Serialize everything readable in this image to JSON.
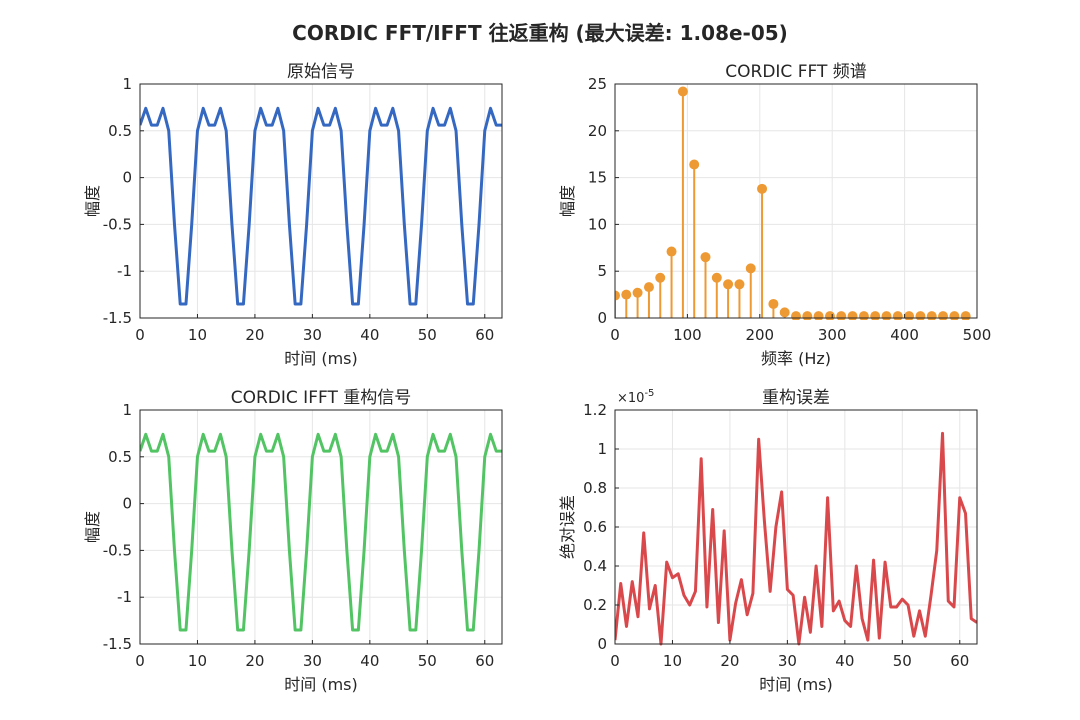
{
  "figure": {
    "title": "CORDIC FFT/IFFT 往返重构 (最大误差: 1.08e-05)"
  },
  "colors": {
    "signal": "#3568c1",
    "spectrum": "#ee9a34",
    "reconstructed": "#52c464",
    "error": "#d9494c",
    "axis": "#262626",
    "grid": "#e6e6e6"
  },
  "chart_data": [
    {
      "id": "orig",
      "type": "line",
      "title": "原始信号",
      "xlabel": "时间 (ms)",
      "ylabel": "幅度",
      "xlim": [
        0,
        63
      ],
      "ylim": [
        -1.5,
        1
      ],
      "xticks": [
        0,
        10,
        20,
        30,
        40,
        50,
        60
      ],
      "yticks": [
        1,
        0.5,
        0,
        -0.5,
        -1,
        -1.5
      ],
      "xtick_labels": [
        "0",
        "10",
        "20",
        "30",
        "40",
        "50",
        "60"
      ],
      "ytick_labels": [
        "1",
        "0.5",
        "0",
        "-0.5",
        "-1",
        "-1.5"
      ],
      "grid": true,
      "color": "signal",
      "x": [
        0,
        1,
        2,
        3,
        4,
        5,
        6,
        7,
        8,
        9,
        10,
        11,
        12,
        13,
        14,
        15,
        16,
        17,
        18,
        19,
        20,
        21,
        22,
        23,
        24,
        25,
        26,
        27,
        28,
        29,
        30,
        31,
        32,
        33,
        34,
        35,
        36,
        37,
        38,
        39,
        40,
        41,
        42,
        43,
        44,
        45,
        46,
        47,
        48,
        49,
        50,
        51,
        52,
        53,
        54,
        55,
        56,
        57,
        58,
        59,
        60,
        61,
        62,
        63
      ],
      "y": [
        0.56,
        0.74,
        0.56,
        0.56,
        0.74,
        0.5,
        -0.5,
        -1.35,
        -1.35,
        -0.5,
        0.5,
        0.74,
        0.56,
        0.56,
        0.74,
        0.5,
        -0.5,
        -1.35,
        -1.35,
        -0.5,
        0.5,
        0.74,
        0.56,
        0.56,
        0.74,
        0.5,
        -0.5,
        -1.35,
        -1.35,
        -0.5,
        0.5,
        0.74,
        0.56,
        0.56,
        0.74,
        0.5,
        -0.5,
        -1.35,
        -1.35,
        -0.5,
        0.5,
        0.74,
        0.56,
        0.56,
        0.74,
        0.5,
        -0.5,
        -1.35,
        -1.35,
        -0.5,
        0.5,
        0.74,
        0.56,
        0.56,
        0.74,
        0.5,
        -0.5,
        -1.35,
        -1.35,
        -0.5,
        0.5,
        0.74,
        0.56,
        0.56
      ]
    },
    {
      "id": "fft",
      "type": "stem",
      "title": "CORDIC FFT 频谱",
      "xlabel": "频率 (Hz)",
      "ylabel": "幅度",
      "xlim": [
        0,
        500
      ],
      "ylim": [
        0,
        25
      ],
      "xticks": [
        0,
        100,
        200,
        300,
        400,
        500
      ],
      "yticks": [
        25,
        20,
        15,
        10,
        5,
        0
      ],
      "xtick_labels": [
        "0",
        "100",
        "200",
        "300",
        "400",
        "500"
      ],
      "ytick_labels": [
        "25",
        "20",
        "15",
        "10",
        "5",
        "0"
      ],
      "grid": true,
      "color": "spectrum",
      "x": [
        0,
        15.6,
        31.2,
        46.9,
        62.5,
        78.1,
        93.8,
        109.4,
        125,
        140.6,
        156.2,
        171.9,
        187.5,
        203.1,
        218.8,
        234.4,
        250,
        265.6,
        281.2,
        296.9,
        312.5,
        328.1,
        343.8,
        359.4,
        375,
        390.6,
        406.2,
        421.9,
        437.5,
        453.1,
        468.8,
        484.4
      ],
      "y": [
        2.4,
        2.5,
        2.7,
        3.3,
        4.3,
        7.1,
        24.2,
        16.4,
        6.5,
        4.3,
        3.6,
        3.6,
        5.3,
        13.8,
        1.5,
        0.6,
        0.2,
        0.2,
        0.2,
        0.2,
        0.2,
        0.2,
        0.2,
        0.2,
        0.2,
        0.2,
        0.2,
        0.2,
        0.2,
        0.2,
        0.2,
        0.2
      ]
    },
    {
      "id": "ifft",
      "type": "line",
      "title": "CORDIC IFFT 重构信号",
      "xlabel": "时间 (ms)",
      "ylabel": "幅度",
      "xlim": [
        0,
        63
      ],
      "ylim": [
        -1.5,
        1
      ],
      "xticks": [
        0,
        10,
        20,
        30,
        40,
        50,
        60
      ],
      "yticks": [
        1,
        0.5,
        0,
        -0.5,
        -1,
        -1.5
      ],
      "xtick_labels": [
        "0",
        "10",
        "20",
        "30",
        "40",
        "50",
        "60"
      ],
      "ytick_labels": [
        "1",
        "0.5",
        "0",
        "-0.5",
        "-1",
        "-1.5"
      ],
      "grid": true,
      "color": "reconstructed",
      "x": [
        0,
        1,
        2,
        3,
        4,
        5,
        6,
        7,
        8,
        9,
        10,
        11,
        12,
        13,
        14,
        15,
        16,
        17,
        18,
        19,
        20,
        21,
        22,
        23,
        24,
        25,
        26,
        27,
        28,
        29,
        30,
        31,
        32,
        33,
        34,
        35,
        36,
        37,
        38,
        39,
        40,
        41,
        42,
        43,
        44,
        45,
        46,
        47,
        48,
        49,
        50,
        51,
        52,
        53,
        54,
        55,
        56,
        57,
        58,
        59,
        60,
        61,
        62,
        63
      ],
      "y": [
        0.56,
        0.74,
        0.56,
        0.56,
        0.74,
        0.5,
        -0.5,
        -1.35,
        -1.35,
        -0.5,
        0.5,
        0.74,
        0.56,
        0.56,
        0.74,
        0.5,
        -0.5,
        -1.35,
        -1.35,
        -0.5,
        0.5,
        0.74,
        0.56,
        0.56,
        0.74,
        0.5,
        -0.5,
        -1.35,
        -1.35,
        -0.5,
        0.5,
        0.74,
        0.56,
        0.56,
        0.74,
        0.5,
        -0.5,
        -1.35,
        -1.35,
        -0.5,
        0.5,
        0.74,
        0.56,
        0.56,
        0.74,
        0.5,
        -0.5,
        -1.35,
        -1.35,
        -0.5,
        0.5,
        0.74,
        0.56,
        0.56,
        0.74,
        0.5,
        -0.5,
        -1.35,
        -1.35,
        -0.5,
        0.5,
        0.74,
        0.56,
        0.56
      ]
    },
    {
      "id": "err",
      "type": "line",
      "title": "重构误差",
      "xlabel": "时间 (ms)",
      "ylabel": "绝对误差",
      "exponent_label": "×10",
      "exponent_value": "-5",
      "xlim": [
        0,
        63
      ],
      "ylim": [
        0,
        1.2
      ],
      "xticks": [
        0,
        10,
        20,
        30,
        40,
        50,
        60
      ],
      "yticks": [
        1.2,
        1,
        0.8,
        0.6,
        0.4,
        0.2,
        0
      ],
      "xtick_labels": [
        "0",
        "10",
        "20",
        "30",
        "40",
        "50",
        "60"
      ],
      "ytick_labels": [
        "1.2",
        "1",
        "0.8",
        "0.6",
        "0.4",
        "0.2",
        "0"
      ],
      "grid": true,
      "color": "error",
      "x": [
        0,
        1,
        2,
        3,
        4,
        5,
        6,
        7,
        8,
        9,
        10,
        11,
        12,
        13,
        14,
        15,
        16,
        17,
        18,
        19,
        20,
        21,
        22,
        23,
        24,
        25,
        26,
        27,
        28,
        29,
        30,
        31,
        32,
        33,
        34,
        35,
        36,
        37,
        38,
        39,
        40,
        41,
        42,
        43,
        44,
        45,
        46,
        47,
        48,
        49,
        50,
        51,
        52,
        53,
        54,
        55,
        56,
        57,
        58,
        59,
        60,
        61,
        62,
        63
      ],
      "y": [
        0.02,
        0.31,
        0.09,
        0.32,
        0.14,
        0.57,
        0.18,
        0.3,
        0.0,
        0.42,
        0.34,
        0.36,
        0.25,
        0.2,
        0.27,
        0.95,
        0.19,
        0.69,
        0.11,
        0.58,
        0.02,
        0.21,
        0.33,
        0.15,
        0.26,
        1.05,
        0.63,
        0.27,
        0.6,
        0.78,
        0.28,
        0.25,
        0.0,
        0.24,
        0.06,
        0.4,
        0.09,
        0.75,
        0.17,
        0.22,
        0.12,
        0.09,
        0.4,
        0.13,
        0.02,
        0.43,
        0.03,
        0.42,
        0.19,
        0.19,
        0.23,
        0.2,
        0.04,
        0.17,
        0.04,
        0.25,
        0.48,
        1.08,
        0.22,
        0.19,
        0.75,
        0.67,
        0.13,
        0.11
      ]
    }
  ]
}
